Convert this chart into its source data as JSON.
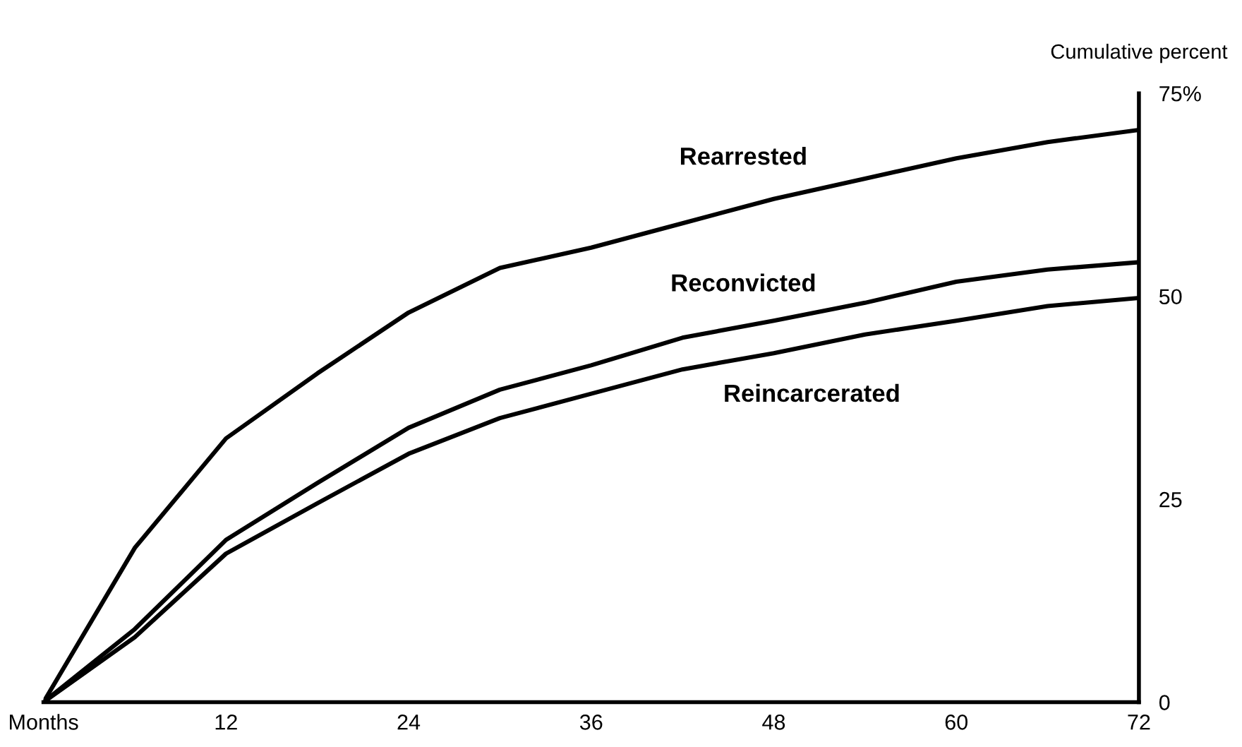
{
  "chart_data": {
    "type": "line",
    "ylabel": "Cumulative percent",
    "x": [
      0,
      6,
      12,
      18,
      24,
      30,
      36,
      42,
      48,
      54,
      60,
      66,
      72
    ],
    "series": [
      {
        "name": "Rearrested",
        "color": "#000000",
        "values": [
          0,
          19,
          32.5,
          40.5,
          48,
          53.5,
          56,
          59,
          62,
          64.5,
          67,
          69,
          70.5
        ]
      },
      {
        "name": "Reconvicted",
        "color": "#000000",
        "values": [
          0,
          9,
          20,
          27,
          33.8,
          38.5,
          41.5,
          44.9,
          47,
          49.2,
          51.8,
          53.3,
          54.2
        ]
      },
      {
        "name": "Reincarcerated",
        "color": "#000000",
        "values": [
          0,
          8,
          18.3,
          24.5,
          30.6,
          35,
          38,
          41,
          43,
          45.3,
          47,
          48.8,
          49.8
        ]
      }
    ],
    "xlim": [
      0,
      72
    ],
    "xticks": [
      {
        "value": 0,
        "label": "Months"
      },
      12,
      24,
      36,
      48,
      60,
      72
    ],
    "ylim": [
      0,
      75
    ],
    "yticks": [
      0,
      25,
      50,
      {
        "value": 75,
        "label": "75%"
      }
    ],
    "grid": false,
    "legend": false,
    "marker": "none",
    "line_style": "solid"
  }
}
